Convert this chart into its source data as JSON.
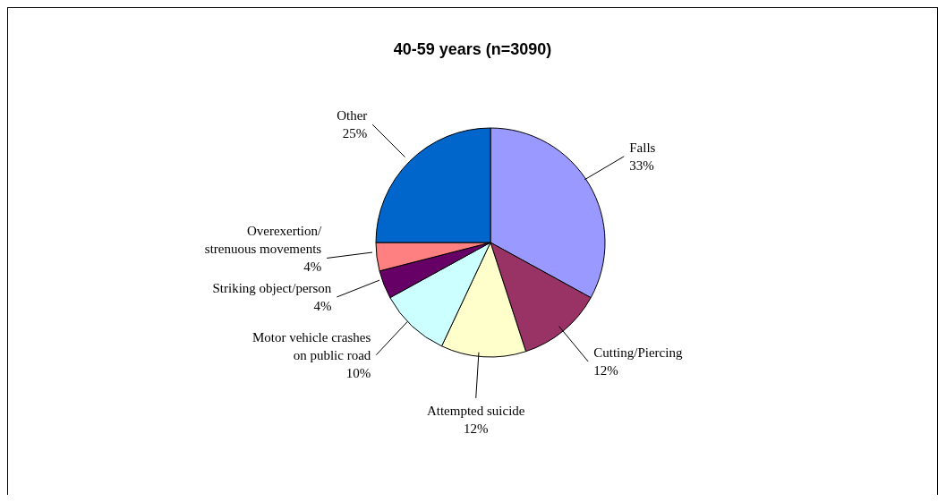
{
  "chart_data": {
    "type": "pie",
    "title": "40-59 years (n=3090)",
    "categories": [
      "Falls",
      "Cutting/Piercing",
      "Attempted suicide",
      "Motor vehicle crashes on public road",
      "Striking object/person",
      "Overexertion/ strenuous movements",
      "Other"
    ],
    "values": [
      33,
      12,
      12,
      10,
      4,
      4,
      25
    ],
    "colors": [
      "#9999ff",
      "#993366",
      "#ffffcc",
      "#ccffff",
      "#660066",
      "#ff8080",
      "#0066cc"
    ],
    "value_labels": [
      "33%",
      "12%",
      "12%",
      "10%",
      "4%",
      "4%",
      "25%"
    ],
    "legend": false
  }
}
